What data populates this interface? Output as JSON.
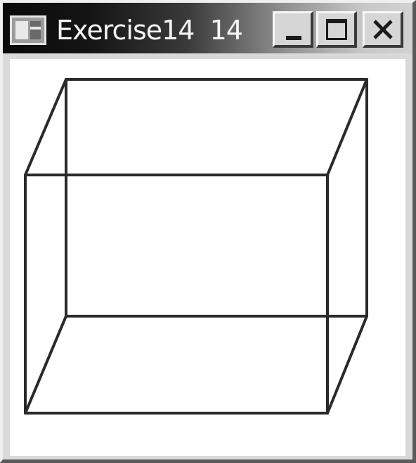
{
  "window": {
    "title": "Exercise14  14",
    "controls": {
      "minimize": "minimize",
      "maximize": "maximize",
      "close": "close"
    }
  },
  "icons": {
    "app": "window-app-icon",
    "minimize": "minimize-icon",
    "maximize": "maximize-icon",
    "close": "close-icon"
  },
  "canvas": {
    "drawing": "wireframe-cube",
    "stroke_color": "#2a2a2a",
    "background": "#ffffff"
  }
}
